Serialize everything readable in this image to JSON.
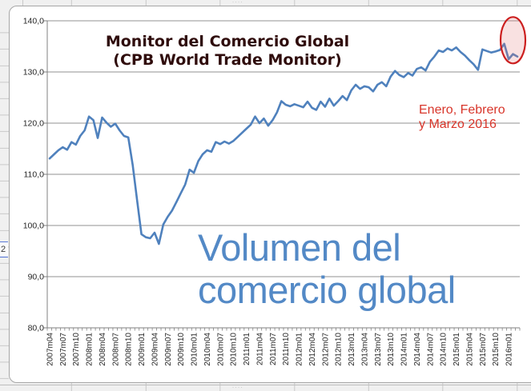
{
  "sheet": {
    "partial_cell_value": "2",
    "overflow_dots": "····"
  },
  "chart": {
    "title": {
      "line1": "Monitor del Comercio Global",
      "line2": "(CPB World Trade Monitor)",
      "color": "#2f0c0c"
    },
    "watermark": {
      "line1": "Volumen del",
      "line2": "comercio global",
      "color": "#5389c6"
    },
    "annotation": {
      "line1": "Enero, Febrero",
      "line2": "y Marzo 2016",
      "color": "#d8352a"
    },
    "chart_data": {
      "type": "line",
      "title": "Monitor del Comercio Global (CPB World Trade Monitor)",
      "frequency": "monthly",
      "start_month": "2007m04",
      "end_month": "2016m03",
      "x_tick_labels": [
        "2007m04",
        "2007m07",
        "2007m10",
        "2008m01",
        "2008m04",
        "2008m07",
        "2008m10",
        "2009m01",
        "2009m04",
        "2009m07",
        "2009m10",
        "2010m01",
        "2010m04",
        "2010m07",
        "2010m10",
        "2011m01",
        "2011m04",
        "2011m07",
        "2011m10",
        "2012m01",
        "2012m04",
        "2012m07",
        "2012m10",
        "2013m01",
        "2013m04",
        "2013m07",
        "2013m10",
        "2014m01",
        "2014m04",
        "2014m07",
        "2014m10",
        "2015m01",
        "2015m04",
        "2015m07",
        "2015m10",
        "2016m01"
      ],
      "y_tick_labels": [
        "140,0",
        "130,0",
        "120,0",
        "110,0",
        "100,0",
        "90,0",
        "80,0"
      ],
      "ylim": [
        80,
        140
      ],
      "y_tick_step": 10,
      "grid": true,
      "series": [
        {
          "name": "Volumen del comercio global",
          "color": "#4f81bd",
          "values": [
            113.1,
            113.9,
            114.7,
            115.3,
            114.8,
            116.3,
            115.8,
            117.5,
            118.6,
            121.3,
            120.6,
            117.1,
            121.1,
            120.1,
            119.3,
            119.9,
            118.6,
            117.5,
            117.2,
            111.8,
            104.9,
            98.3,
            97.7,
            97.5,
            98.6,
            96.4,
            100.2,
            101.7,
            102.9,
            104.6,
            106.3,
            108.0,
            110.9,
            110.3,
            112.6,
            113.9,
            114.7,
            114.4,
            116.3,
            115.9,
            116.4,
            116.0,
            116.5,
            117.3,
            118.1,
            118.9,
            119.7,
            121.3,
            120.0,
            120.9,
            119.5,
            120.6,
            122.1,
            124.3,
            123.6,
            123.3,
            123.7,
            123.4,
            123.1,
            124.2,
            123.0,
            122.6,
            124.2,
            123.2,
            124.8,
            123.4,
            124.3,
            125.3,
            124.5,
            126.4,
            127.5,
            126.7,
            127.2,
            127.0,
            126.2,
            127.5,
            128.0,
            127.2,
            129.1,
            130.2,
            129.4,
            129.0,
            129.8,
            129.3,
            130.6,
            130.9,
            130.3,
            132.0,
            133.0,
            134.2,
            133.9,
            134.6,
            134.2,
            134.8,
            133.9,
            133.2,
            132.3,
            131.5,
            130.4,
            134.4,
            134.1,
            133.8,
            134.0,
            134.3,
            135.5,
            132.5,
            133.5,
            133.0
          ]
        }
      ],
      "highlight": {
        "shape": "ellipse",
        "months": [
          "2016m01",
          "2016m02",
          "2016m03"
        ],
        "stroke": "#cc1f1f",
        "fill": "rgba(228,120,120,0.22)"
      },
      "axis_color": "#808080",
      "grid_color": "#919191",
      "label_color": "#262626",
      "legend": "none"
    }
  }
}
